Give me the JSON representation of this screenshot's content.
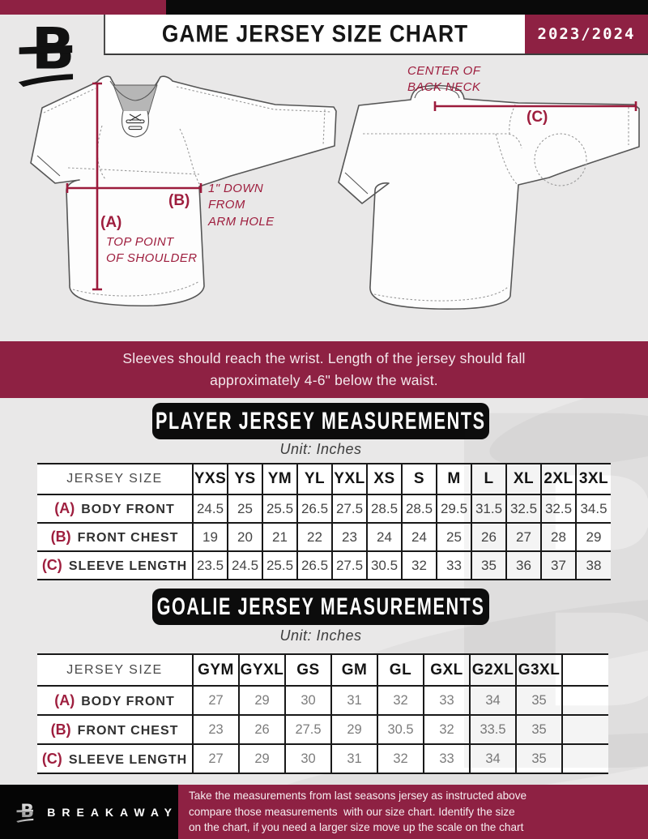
{
  "header": {
    "title": "GAME JERSEY SIZE CHART",
    "season": "2023/2024"
  },
  "colors": {
    "maroon": "#8e2143",
    "annotation_maroon": "#9e1e3e",
    "pill_black": "#0c0c0c"
  },
  "diagrams": {
    "front": {
      "marker_a": "(A)",
      "note_a_line1": "TOP POINT",
      "note_a_line2": "OF SHOULDER",
      "marker_b": "(B)",
      "note_b_line1": "1\" DOWN",
      "note_b_line2": "FROM",
      "note_b_line3": "ARM HOLE"
    },
    "back": {
      "marker_c": "(C)",
      "note_c_line1": "CENTER OF",
      "note_c_line2": "BACK NECK"
    }
  },
  "banner": {
    "line1": "Sleeves should reach the wrist. Length of the jersey should fall",
    "line2": "approximately 4-6\" below the waist."
  },
  "player_section": {
    "title": "PLAYER JERSEY MEASUREMENTS",
    "unit": "Unit: Inches",
    "table": {
      "corner": "JERSEY SIZE",
      "sizes": [
        "YXS",
        "YS",
        "YM",
        "YL",
        "YXL",
        "XS",
        "S",
        "M",
        "L",
        "XL",
        "2XL",
        "3XL"
      ],
      "rows": [
        {
          "marker": "(A)",
          "label": "BODY FRONT",
          "values": [
            "24.5",
            "25",
            "25.5",
            "26.5",
            "27.5",
            "28.5",
            "28.5",
            "29.5",
            "31.5",
            "32.5",
            "32.5",
            "34.5"
          ]
        },
        {
          "marker": "(B)",
          "label": "FRONT CHEST",
          "values": [
            "19",
            "20",
            "21",
            "22",
            "23",
            "24",
            "24",
            "25",
            "26",
            "27",
            "28",
            "29"
          ]
        },
        {
          "marker": "(C)",
          "label": "SLEEVE LENGTH",
          "values": [
            "23.5",
            "24.5",
            "25.5",
            "26.5",
            "27.5",
            "30.5",
            "32",
            "33",
            "35",
            "36",
            "37",
            "38"
          ]
        }
      ]
    }
  },
  "goalie_section": {
    "title": "GOALIE JERSEY MEASUREMENTS",
    "unit": "Unit: Inches",
    "table": {
      "corner": "JERSEY SIZE",
      "sizes": [
        "GYM",
        "GYXL",
        "GS",
        "GM",
        "GL",
        "GXL",
        "G2XL",
        "G3XL",
        ""
      ],
      "rows": [
        {
          "marker": "(A)",
          "label": "BODY FRONT",
          "values": [
            "27",
            "29",
            "30",
            "31",
            "32",
            "33",
            "34",
            "35",
            ""
          ]
        },
        {
          "marker": "(B)",
          "label": "FRONT CHEST",
          "values": [
            "23",
            "26",
            "27.5",
            "29",
            "30.5",
            "32",
            "33.5",
            "35",
            ""
          ]
        },
        {
          "marker": "(C)",
          "label": "SLEEVE LENGTH",
          "values": [
            "27",
            "29",
            "30",
            "31",
            "32",
            "33",
            "34",
            "35",
            ""
          ]
        }
      ]
    }
  },
  "footer": {
    "brand": "BREAKAWAY",
    "line1": "Take the measurements from last seasons jersey as instructed above",
    "line2": "compare those measurements  with our size chart. Identify the size",
    "line3": "on the chart, if you need a larger size move up the scale on the chart"
  },
  "watermark_letter": "B"
}
